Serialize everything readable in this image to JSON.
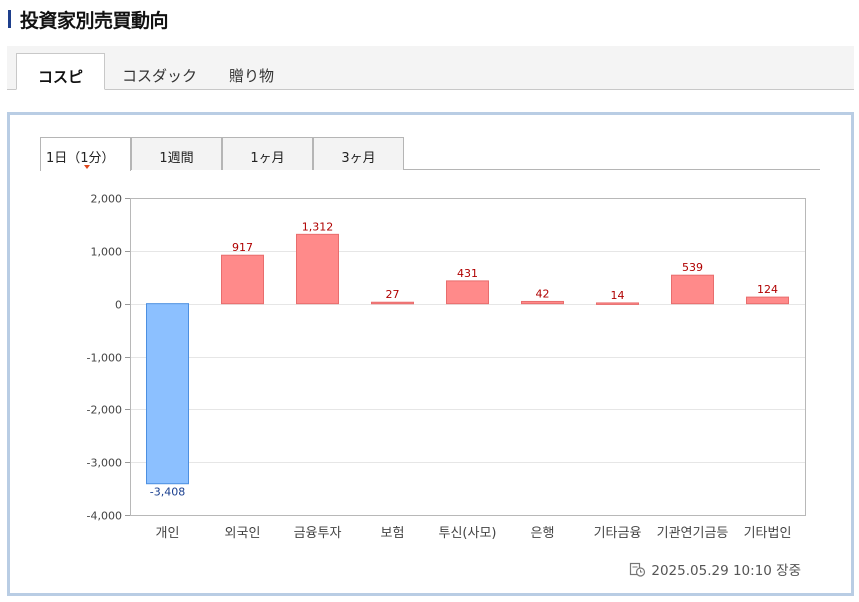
{
  "page": {
    "title": "投資家別売買動向"
  },
  "market_tabs": [
    {
      "label": "コスピ",
      "active": true
    },
    {
      "label": "コスダック",
      "active": false
    },
    {
      "label": "贈り物",
      "active": false
    }
  ],
  "period_tabs": [
    {
      "label": "1日（1分）",
      "active": true
    },
    {
      "label": "1週間",
      "active": false
    },
    {
      "label": "1ヶ月",
      "active": false
    },
    {
      "label": "3ヶ月",
      "active": false
    }
  ],
  "chart_data": {
    "type": "bar",
    "categories": [
      "개인",
      "외국인",
      "금융투자",
      "보험",
      "투신(사모)",
      "은행",
      "기타금융",
      "기관연기금등",
      "기타법인"
    ],
    "values": [
      -3408,
      917,
      1312,
      27,
      431,
      42,
      14,
      539,
      124
    ],
    "value_labels": [
      "-3,408",
      "917",
      "1,312",
      "27",
      "431",
      "42",
      "14",
      "539",
      "124"
    ],
    "ylim": [
      -4000,
      2000
    ],
    "yticks": [
      2000,
      1000,
      0,
      -1000,
      -2000,
      -3000,
      -4000
    ],
    "ytick_labels": [
      "2,000",
      "1,000",
      "0",
      "-1,000",
      "-2,000",
      "-3,000",
      "-4,000"
    ],
    "grid": true,
    "colors": {
      "positive_fill": "#ff8a8a",
      "positive_stroke": "#e86d6d",
      "negative_fill": "#8cc0ff",
      "negative_stroke": "#4d8fe0",
      "positive_label": "#b00000",
      "negative_label": "#1a3f8f"
    }
  },
  "timestamp": {
    "text": "2025.05.29 10:10 장중",
    "icon": "clock-icon"
  }
}
